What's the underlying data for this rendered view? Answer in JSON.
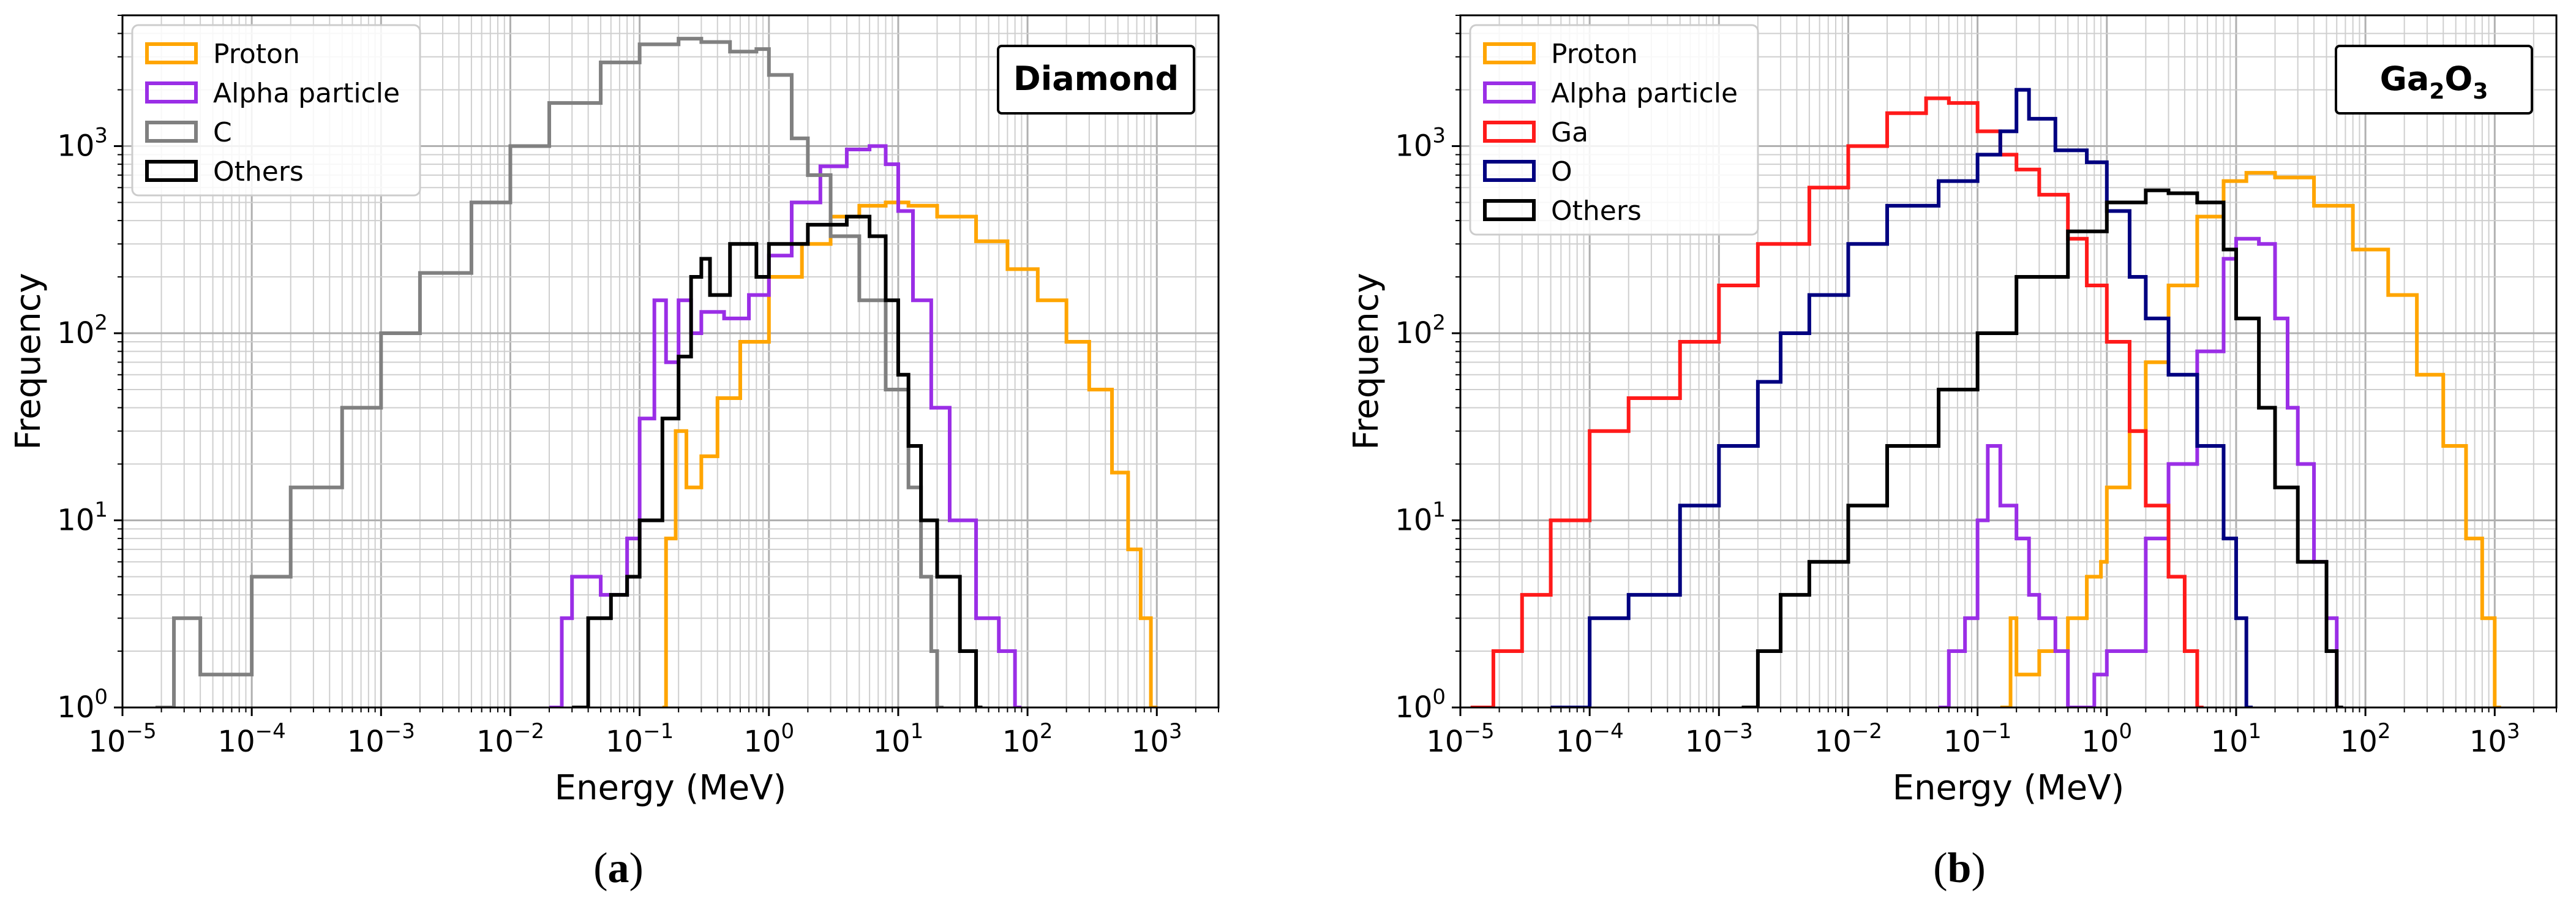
{
  "colors": {
    "proton": "#ffa500",
    "alpha": "#9a2ee6",
    "carbon": "#808080",
    "gallium": "#ff1a1a",
    "oxygen": "#000080",
    "others": "#000000"
  },
  "chart_data": [
    {
      "type": "histogram-step",
      "panel_label": "(a)",
      "panel_letter": "a",
      "title": "Diamond",
      "xlabel": "Energy (MeV)",
      "ylabel": "Frequency",
      "xscale": "log",
      "yscale": "log",
      "xlim": [
        1e-05,
        3000
      ],
      "ylim": [
        1,
        5000
      ],
      "x_tick_values": [
        1e-05,
        0.0001,
        0.001,
        0.01,
        0.1,
        1,
        10,
        100,
        1000
      ],
      "x_tick_labels": [
        [
          "10",
          "−5"
        ],
        [
          "10",
          "−4"
        ],
        [
          "10",
          "−3"
        ],
        [
          "10",
          "−2"
        ],
        [
          "10",
          "−1"
        ],
        [
          "10",
          "0"
        ],
        [
          "10",
          "1"
        ],
        [
          "10",
          "2"
        ],
        [
          "10",
          "3"
        ]
      ],
      "y_tick_values": [
        1,
        10,
        100,
        1000
      ],
      "y_tick_labels": [
        [
          "10",
          "0"
        ],
        [
          "10",
          "1"
        ],
        [
          "10",
          "2"
        ],
        [
          "10",
          "3"
        ]
      ],
      "grid": true,
      "legend_position": "top-left",
      "series": [
        {
          "name": "Proton",
          "color_key": "proton",
          "points": [
            [
              0.15,
              1
            ],
            [
              0.16,
              8
            ],
            [
              0.19,
              30
            ],
            [
              0.23,
              15
            ],
            [
              0.3,
              22
            ],
            [
              0.4,
              45
            ],
            [
              0.6,
              90
            ],
            [
              1,
              200
            ],
            [
              1.8,
              300
            ],
            [
              3,
              420
            ],
            [
              5,
              480
            ],
            [
              8,
              500
            ],
            [
              12,
              480
            ],
            [
              20,
              420
            ],
            [
              40,
              310
            ],
            [
              70,
              220
            ],
            [
              120,
              150
            ],
            [
              200,
              90
            ],
            [
              300,
              50
            ],
            [
              450,
              18
            ],
            [
              600,
              7
            ],
            [
              750,
              3
            ],
            [
              900,
              1
            ]
          ]
        },
        {
          "name": "Alpha particle",
          "color_key": "alpha",
          "points": [
            [
              0.02,
              1
            ],
            [
              0.025,
              3
            ],
            [
              0.03,
              5
            ],
            [
              0.05,
              4
            ],
            [
              0.08,
              8
            ],
            [
              0.1,
              35
            ],
            [
              0.13,
              150
            ],
            [
              0.16,
              70
            ],
            [
              0.2,
              150
            ],
            [
              0.25,
              100
            ],
            [
              0.3,
              130
            ],
            [
              0.45,
              120
            ],
            [
              0.7,
              160
            ],
            [
              1,
              260
            ],
            [
              1.5,
              500
            ],
            [
              2.5,
              780
            ],
            [
              4,
              960
            ],
            [
              6,
              1000
            ],
            [
              8,
              800
            ],
            [
              10,
              450
            ],
            [
              13,
              150
            ],
            [
              18,
              40
            ],
            [
              25,
              10
            ],
            [
              40,
              3
            ],
            [
              60,
              2
            ],
            [
              80,
              1
            ]
          ]
        },
        {
          "name": "C",
          "color_key": "carbon",
          "points": [
            [
              1.8e-05,
              1
            ],
            [
              2.5e-05,
              3
            ],
            [
              4e-05,
              1.5
            ],
            [
              0.0001,
              5
            ],
            [
              0.0002,
              15
            ],
            [
              0.0005,
              40
            ],
            [
              0.001,
              100
            ],
            [
              0.002,
              210
            ],
            [
              0.005,
              500
            ],
            [
              0.01,
              1000
            ],
            [
              0.02,
              1700
            ],
            [
              0.05,
              2800
            ],
            [
              0.1,
              3500
            ],
            [
              0.2,
              3750
            ],
            [
              0.3,
              3600
            ],
            [
              0.5,
              3200
            ],
            [
              0.8,
              3300
            ],
            [
              1,
              2400
            ],
            [
              1.5,
              1100
            ],
            [
              2,
              700
            ],
            [
              3,
              330
            ],
            [
              5,
              150
            ],
            [
              8,
              50
            ],
            [
              12,
              15
            ],
            [
              15,
              5
            ],
            [
              18,
              2
            ],
            [
              20,
              1
            ]
          ]
        },
        {
          "name": "Others",
          "color_key": "others",
          "points": [
            [
              0.03,
              1
            ],
            [
              0.04,
              3
            ],
            [
              0.06,
              4
            ],
            [
              0.08,
              5
            ],
            [
              0.1,
              10
            ],
            [
              0.15,
              35
            ],
            [
              0.2,
              75
            ],
            [
              0.25,
              200
            ],
            [
              0.3,
              250
            ],
            [
              0.35,
              160
            ],
            [
              0.5,
              300
            ],
            [
              0.8,
              200
            ],
            [
              1,
              300
            ],
            [
              2,
              380
            ],
            [
              4,
              420
            ],
            [
              6,
              330
            ],
            [
              8,
              150
            ],
            [
              10,
              60
            ],
            [
              12,
              25
            ],
            [
              15,
              10
            ],
            [
              20,
              5
            ],
            [
              30,
              2
            ],
            [
              40,
              1
            ]
          ]
        }
      ],
      "legend_entries": [
        "Proton",
        "Alpha particle",
        "C",
        "Others"
      ]
    },
    {
      "type": "histogram-step",
      "panel_label": "(b)",
      "panel_letter": "b",
      "title": "Ga2O3",
      "title_parts": {
        "base": "Ga",
        "sub1": "2",
        "mid": "O",
        "sub2": "3"
      },
      "xlabel": "Energy (MeV)",
      "ylabel": "Frequency",
      "xscale": "log",
      "yscale": "log",
      "xlim": [
        1e-05,
        3000
      ],
      "ylim": [
        1,
        5000
      ],
      "x_tick_values": [
        1e-05,
        0.0001,
        0.001,
        0.01,
        0.1,
        1,
        10,
        100,
        1000
      ],
      "x_tick_labels": [
        [
          "10",
          "−5"
        ],
        [
          "10",
          "−4"
        ],
        [
          "10",
          "−3"
        ],
        [
          "10",
          "−2"
        ],
        [
          "10",
          "−1"
        ],
        [
          "10",
          "0"
        ],
        [
          "10",
          "1"
        ],
        [
          "10",
          "2"
        ],
        [
          "10",
          "3"
        ]
      ],
      "y_tick_values": [
        1,
        10,
        100,
        1000
      ],
      "y_tick_labels": [
        [
          "10",
          "0"
        ],
        [
          "10",
          "1"
        ],
        [
          "10",
          "2"
        ],
        [
          "10",
          "3"
        ]
      ],
      "grid": true,
      "legend_position": "top-left",
      "series": [
        {
          "name": "Proton",
          "color_key": "proton",
          "points": [
            [
              0.15,
              1
            ],
            [
              0.18,
              3
            ],
            [
              0.2,
              1.5
            ],
            [
              0.3,
              2
            ],
            [
              0.5,
              3
            ],
            [
              0.7,
              5
            ],
            [
              0.9,
              6
            ],
            [
              1,
              15
            ],
            [
              1.5,
              30
            ],
            [
              2,
              70
            ],
            [
              3,
              180
            ],
            [
              5,
              420
            ],
            [
              8,
              650
            ],
            [
              12,
              720
            ],
            [
              20,
              680
            ],
            [
              40,
              480
            ],
            [
              80,
              280
            ],
            [
              150,
              160
            ],
            [
              250,
              60
            ],
            [
              400,
              25
            ],
            [
              600,
              8
            ],
            [
              800,
              3
            ],
            [
              1000,
              1
            ]
          ]
        },
        {
          "name": "Alpha particle",
          "color_key": "alpha",
          "points": [
            [
              0.05,
              1
            ],
            [
              0.06,
              2
            ],
            [
              0.08,
              3
            ],
            [
              0.1,
              10
            ],
            [
              0.12,
              25
            ],
            [
              0.15,
              12
            ],
            [
              0.2,
              8
            ],
            [
              0.25,
              4
            ],
            [
              0.3,
              3
            ],
            [
              0.4,
              2
            ],
            [
              0.5,
              1
            ],
            [
              0.8,
              1.5
            ],
            [
              1,
              2
            ],
            [
              2,
              8
            ],
            [
              3,
              20
            ],
            [
              5,
              80
            ],
            [
              8,
              250
            ],
            [
              10,
              320
            ],
            [
              15,
              300
            ],
            [
              20,
              120
            ],
            [
              25,
              40
            ],
            [
              30,
              20
            ],
            [
              40,
              6
            ],
            [
              50,
              3
            ],
            [
              60,
              1
            ]
          ]
        },
        {
          "name": "Ga",
          "color_key": "gallium",
          "points": [
            [
              1.2e-05,
              1
            ],
            [
              1.8e-05,
              2
            ],
            [
              3e-05,
              4
            ],
            [
              5e-05,
              10
            ],
            [
              0.0001,
              30
            ],
            [
              0.0002,
              45
            ],
            [
              0.0005,
              90
            ],
            [
              0.001,
              180
            ],
            [
              0.002,
              300
            ],
            [
              0.005,
              600
            ],
            [
              0.01,
              1000
            ],
            [
              0.02,
              1500
            ],
            [
              0.04,
              1800
            ],
            [
              0.06,
              1700
            ],
            [
              0.1,
              1200
            ],
            [
              0.15,
              900
            ],
            [
              0.2,
              750
            ],
            [
              0.3,
              550
            ],
            [
              0.5,
              320
            ],
            [
              0.7,
              180
            ],
            [
              1,
              90
            ],
            [
              1.5,
              30
            ],
            [
              2,
              12
            ],
            [
              3,
              5
            ],
            [
              4,
              2
            ],
            [
              5,
              1
            ]
          ]
        },
        {
          "name": "O",
          "color_key": "oxygen",
          "points": [
            [
              5e-05,
              1
            ],
            [
              0.0001,
              3
            ],
            [
              0.0002,
              4
            ],
            [
              0.0005,
              12
            ],
            [
              0.001,
              25
            ],
            [
              0.002,
              55
            ],
            [
              0.003,
              100
            ],
            [
              0.005,
              160
            ],
            [
              0.01,
              300
            ],
            [
              0.02,
              480
            ],
            [
              0.05,
              650
            ],
            [
              0.1,
              900
            ],
            [
              0.15,
              1200
            ],
            [
              0.2,
              2000
            ],
            [
              0.25,
              1400
            ],
            [
              0.4,
              950
            ],
            [
              0.7,
              820
            ],
            [
              1,
              450
            ],
            [
              1.5,
              200
            ],
            [
              2,
              120
            ],
            [
              3,
              60
            ],
            [
              5,
              25
            ],
            [
              8,
              8
            ],
            [
              10,
              3
            ],
            [
              12,
              1
            ]
          ]
        },
        {
          "name": "Others",
          "color_key": "others",
          "points": [
            [
              0.0015,
              1
            ],
            [
              0.002,
              2
            ],
            [
              0.003,
              4
            ],
            [
              0.005,
              6
            ],
            [
              0.01,
              12
            ],
            [
              0.02,
              25
            ],
            [
              0.05,
              50
            ],
            [
              0.1,
              100
            ],
            [
              0.2,
              200
            ],
            [
              0.5,
              350
            ],
            [
              1,
              500
            ],
            [
              2,
              580
            ],
            [
              3,
              560
            ],
            [
              5,
              500
            ],
            [
              8,
              280
            ],
            [
              10,
              120
            ],
            [
              15,
              40
            ],
            [
              20,
              15
            ],
            [
              30,
              6
            ],
            [
              50,
              2
            ],
            [
              60,
              1
            ]
          ]
        }
      ],
      "legend_entries": [
        "Proton",
        "Alpha particle",
        "Ga",
        "O",
        "Others"
      ]
    }
  ]
}
